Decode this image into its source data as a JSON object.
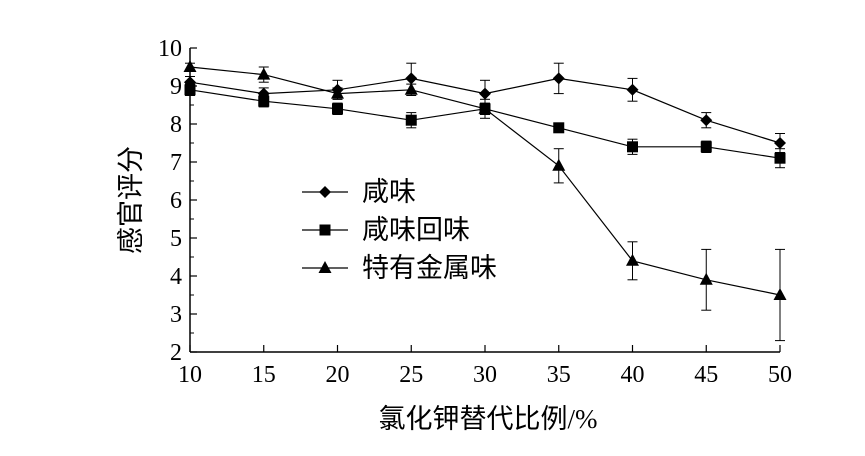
{
  "chart_data": {
    "type": "line",
    "title": "",
    "xlabel": "氯化钾替代比例/%",
    "ylabel": "感官评分",
    "x": [
      10,
      15,
      20,
      25,
      30,
      35,
      40,
      45,
      50
    ],
    "xlim": [
      10,
      50
    ],
    "ylim": [
      2,
      10
    ],
    "xticks": [
      "10",
      "15",
      "20",
      "25",
      "30",
      "35",
      "40",
      "45",
      "50"
    ],
    "yticks": [
      "2",
      "3",
      "4",
      "5",
      "6",
      "7",
      "8",
      "9",
      "10"
    ],
    "grid": false,
    "legend_position": "middle-left",
    "series": [
      {
        "name": "咸味",
        "marker": "diamond",
        "values": [
          9.1,
          8.8,
          8.9,
          9.2,
          8.8,
          9.2,
          8.9,
          8.1,
          7.5
        ],
        "errors": [
          0.15,
          0.15,
          0.25,
          0.4,
          0.35,
          0.4,
          0.3,
          0.2,
          0.25
        ]
      },
      {
        "name": "咸味回味",
        "marker": "square",
        "values": [
          8.9,
          8.6,
          8.4,
          8.1,
          8.4,
          7.9,
          7.4,
          7.4,
          7.1
        ],
        "errors": [
          0.15,
          0.15,
          0.15,
          0.2,
          0.25,
          0.1,
          0.2,
          0.15,
          0.25
        ]
      },
      {
        "name": "特有金属味",
        "marker": "triangle",
        "values": [
          9.5,
          9.3,
          8.8,
          8.9,
          8.4,
          6.9,
          4.4,
          3.9,
          3.5
        ],
        "errors": [
          0.1,
          0.2,
          0.15,
          0.15,
          0.15,
          0.45,
          0.5,
          0.8,
          1.2
        ]
      }
    ]
  }
}
